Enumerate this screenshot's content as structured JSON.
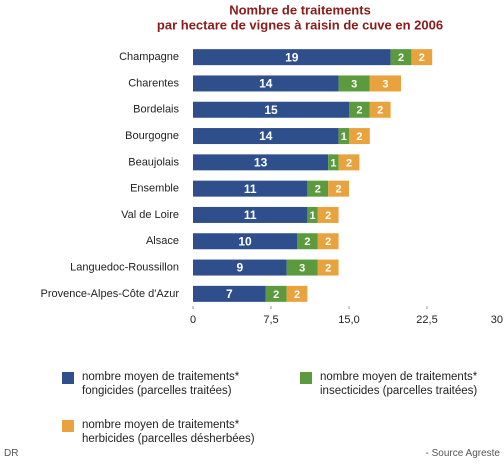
{
  "chart_data": {
    "type": "stacked-bar-horizontal",
    "title": [
      "Nombre de traitements",
      "par hectare de vignes à raisin de cuve en 2006"
    ],
    "categories": [
      "Champagne",
      "Charentes",
      "Bordelais",
      "Bourgogne",
      "Beaujolais",
      "Ensemble",
      "Val de Loire",
      "Alsace",
      "Languedoc-Roussillon",
      "Provence-Alpes-Côte d'Azur"
    ],
    "series": [
      {
        "name": "nombre moyen de traitements* fongicides (parcelles traitées)",
        "color": "#2f4f8c",
        "values": [
          19,
          14,
          15,
          14,
          13,
          11,
          11,
          10,
          9,
          7
        ]
      },
      {
        "name": "nombre moyen de traitements* insecticides (parcelles traitées)",
        "color": "#5b9a3d",
        "values": [
          2,
          3,
          2,
          1,
          1,
          2,
          1,
          2,
          3,
          2
        ]
      },
      {
        "name": "nombre moyen de traitements* herbicides (parcelles désherbées)",
        "color": "#e9a33e",
        "values": [
          2,
          3,
          2,
          2,
          2,
          2,
          2,
          2,
          2,
          2
        ]
      }
    ],
    "xlim": [
      0,
      30
    ],
    "xticks": [
      0,
      {
        "value": 7.5,
        "label": "7,5"
      },
      {
        "value": 15,
        "label": "15,0"
      },
      {
        "value": 22.5,
        "label": "22,5"
      },
      30
    ],
    "credit": "DR",
    "source": "- Source Agreste"
  }
}
